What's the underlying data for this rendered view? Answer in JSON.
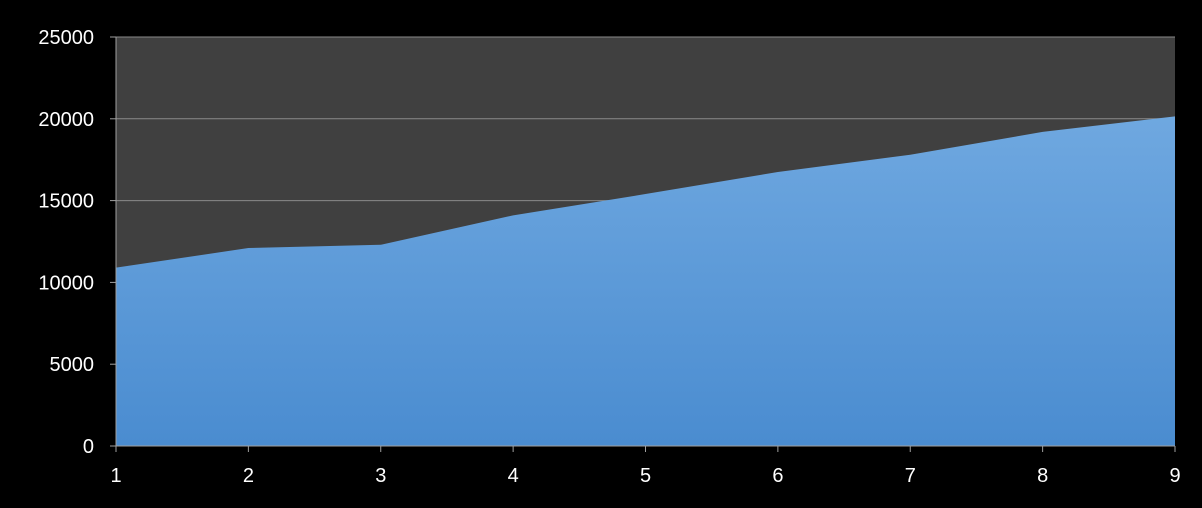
{
  "chart_data": {
    "type": "area",
    "x": [
      1,
      2,
      3,
      4,
      5,
      6,
      7,
      8,
      9
    ],
    "series": [
      {
        "values": [
          10900,
          12100,
          12300,
          14100,
          15400,
          16750,
          17800,
          19200,
          20150
        ]
      }
    ],
    "title": "",
    "xlabel": "",
    "ylabel": "",
    "ylim": [
      0,
      25000
    ],
    "y_ticks": [
      0,
      5000,
      10000,
      15000,
      20000,
      25000
    ],
    "x_ticks": [
      1,
      2,
      3,
      4,
      5,
      6,
      7,
      8,
      9
    ],
    "grid": "horizontal",
    "legend": "none",
    "colors": {
      "background": "#000000",
      "plot_area": "#404040",
      "area_top": "#6fa8e0",
      "area_bottom": "#4a8cd0",
      "gridline": "#8a8a8a",
      "axis": "#a0a0a0",
      "text": "#ffffff"
    }
  }
}
